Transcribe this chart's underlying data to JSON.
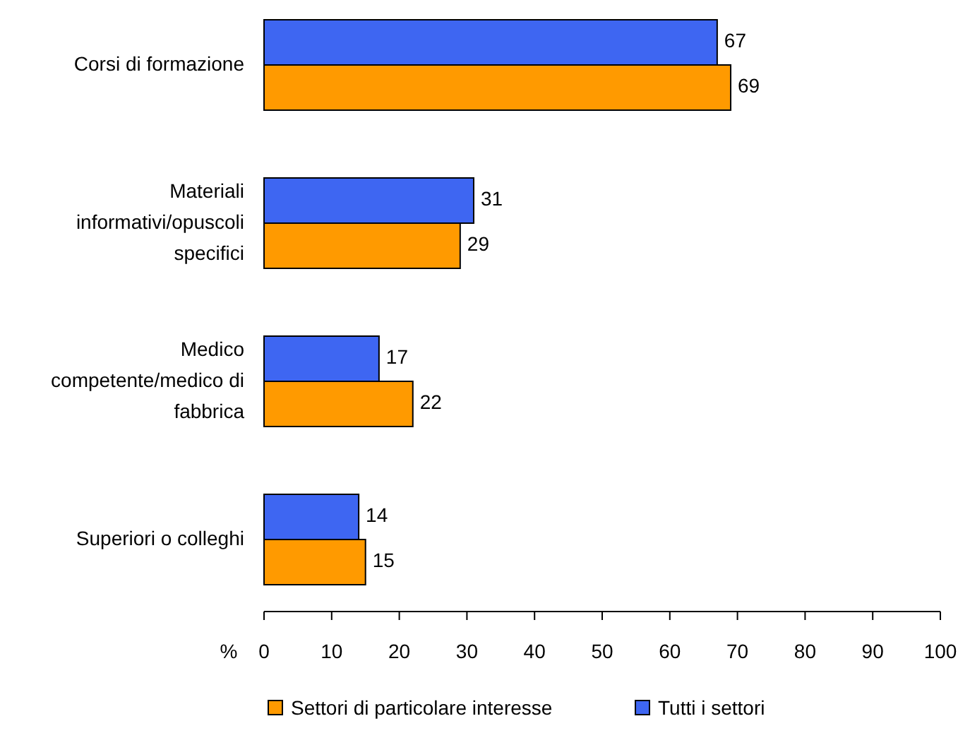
{
  "chart_data": {
    "type": "bar",
    "orientation": "horizontal",
    "xlabel": "%",
    "categories": [
      "Corsi di formazione",
      "Materiali informativi/opuscoli specifici",
      "Medico competente/medico di fabbrica",
      "Superiori o colleghi"
    ],
    "series": [
      {
        "name": "Tutti i settori",
        "color": "#3e66f2",
        "values": [
          67,
          31,
          17,
          14
        ]
      },
      {
        "name": "Settori di particolare interesse",
        "color": "#ff9a00",
        "values": [
          69,
          29,
          22,
          15
        ]
      }
    ],
    "xlim": [
      0,
      100
    ],
    "xticks": [
      0,
      10,
      20,
      30,
      40,
      50,
      60,
      70,
      80,
      90,
      100
    ],
    "data_labels": true,
    "legend": "bottom",
    "grid": false
  }
}
